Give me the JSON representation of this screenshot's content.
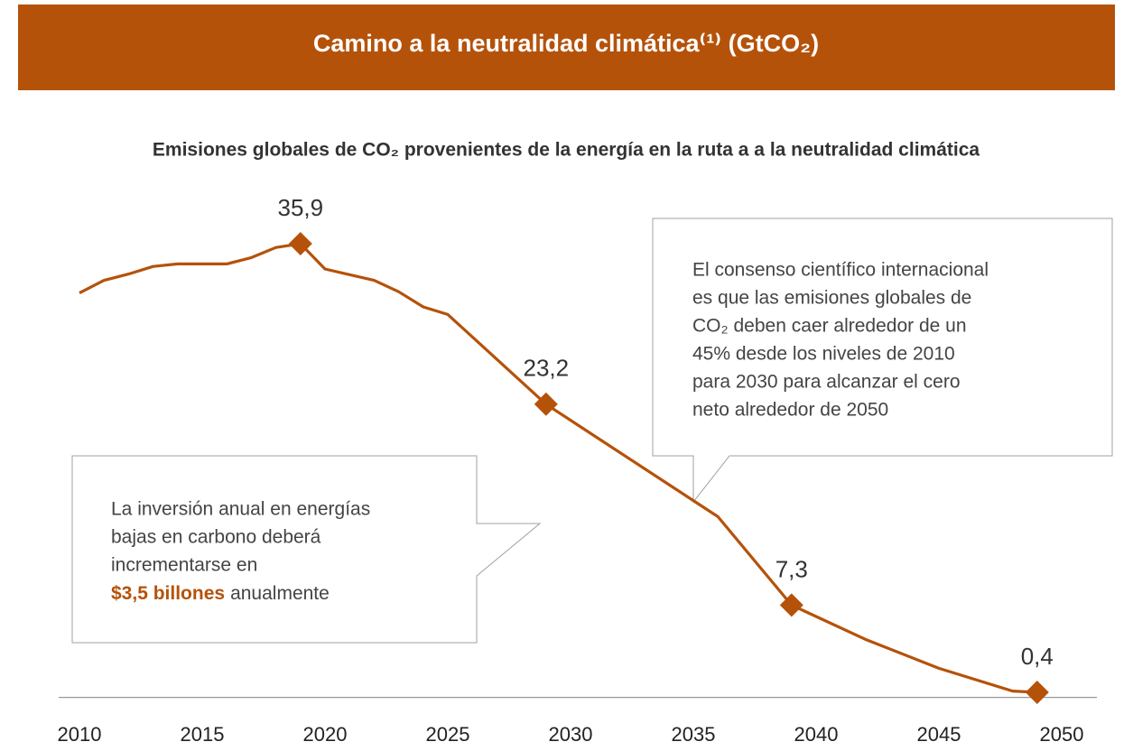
{
  "chart_data": {
    "type": "line",
    "title": "Camino a la neutralidad climática⁽¹⁾ (GtCO₂)",
    "subtitle": "Emisiones globales de CO₂ provenientes de la energía en la ruta a a la neutralidad climática",
    "x": [
      2010,
      2011,
      2012,
      2013,
      2014,
      2016,
      2017,
      2018,
      2019,
      2020,
      2022,
      2023,
      2024,
      2025,
      2029,
      2036,
      2039,
      2042,
      2045,
      2048,
      2049
    ],
    "series": [
      {
        "name": "Emisiones globales de CO₂",
        "color": "#b5520a",
        "values": [
          32.0,
          33.0,
          33.5,
          34.1,
          34.3,
          34.3,
          34.8,
          35.6,
          35.9,
          33.9,
          33.0,
          32.1,
          30.9,
          30.3,
          23.2,
          14.3,
          7.3,
          4.6,
          2.3,
          0.5,
          0.4
        ],
        "value_labels": [
          null,
          null,
          null,
          null,
          null,
          null,
          null,
          null,
          "35,9",
          null,
          null,
          null,
          null,
          null,
          "23,2",
          null,
          "7,3",
          null,
          null,
          null,
          "0,4"
        ]
      }
    ],
    "xlim": [
      2010,
      2050
    ],
    "xticks": [
      2010,
      2015,
      2020,
      2025,
      2030,
      2035,
      2040,
      2045,
      2050
    ],
    "ylim": [
      0,
      40
    ],
    "annotations": [
      {
        "lines": [
          "El consenso científico internacional",
          "es que las emisiones globales de",
          "CO₂ deben caer alrededor de un",
          "45% desde los niveles de 2010",
          "para 2030 para alcanzar el cero",
          "neto alrededor de 2050"
        ]
      },
      {
        "lines": [
          "La inversión anual en energías",
          "bajas en carbono deberá",
          "incrementarse en"
        ],
        "emphasis": "$3,5 billones",
        "emphasis_tail": "anualmente"
      }
    ]
  }
}
